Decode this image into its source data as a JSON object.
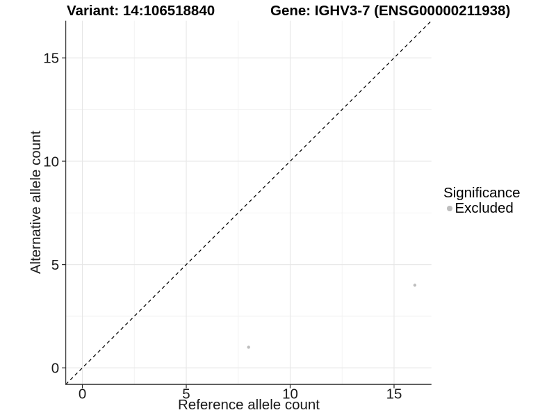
{
  "header": {
    "variant_title": "Variant: 14:106518840",
    "gene_title": "Gene: IGHV3-7 (ENSG00000211938)"
  },
  "legend": {
    "title": "Significance",
    "position": "right",
    "items": [
      {
        "label": "Excluded",
        "color": "#bebebe",
        "marker": "circle"
      }
    ]
  },
  "chart_data": {
    "type": "scatter",
    "title": "Variant: 14:106518840   Gene: IGHV3-7 (ENSG00000211938)",
    "xlabel": "Reference allele count",
    "ylabel": "Alternative allele count",
    "xlim": [
      -0.8,
      16.8
    ],
    "ylim": [
      -0.8,
      16.8
    ],
    "x_ticks": [
      0,
      5,
      10,
      15
    ],
    "y_ticks": [
      0,
      5,
      10,
      15
    ],
    "x_minor_ticks": [
      2.5,
      7.5,
      12.5
    ],
    "y_minor_ticks": [
      2.5,
      7.5,
      12.5
    ],
    "grid": true,
    "legend_position": "right",
    "series": [
      {
        "name": "Excluded",
        "points": [
          {
            "x": 8,
            "y": 1
          },
          {
            "x": 16,
            "y": 4
          }
        ]
      }
    ],
    "reference_line": {
      "equation": "y = x",
      "style": "dashed",
      "color": "#000000"
    },
    "colors": {
      "point": "#bebebe",
      "grid_major": "#e6e6e6",
      "grid_minor": "#f2f2f2",
      "axis_line": "#3c3c3c",
      "tick": "#222222",
      "tick_label": "#1a1a1a",
      "background": "#ffffff"
    }
  }
}
